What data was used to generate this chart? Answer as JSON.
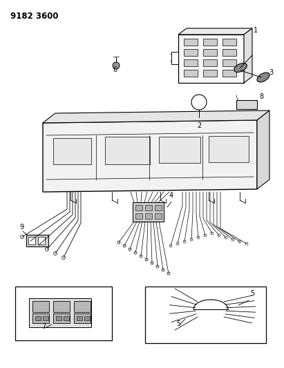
{
  "title": "9182 3600",
  "bg_color": "#ffffff",
  "fg_color": "#000000",
  "fig_width": 4.11,
  "fig_height": 5.33,
  "dpi": 100
}
